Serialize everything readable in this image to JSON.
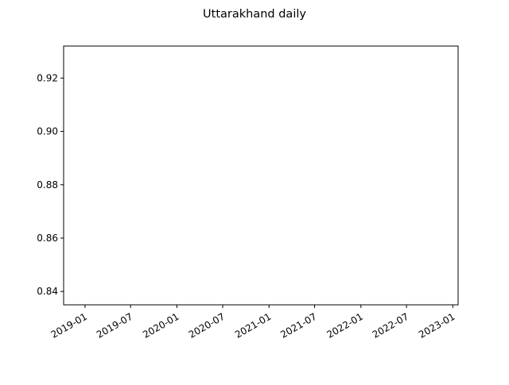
{
  "chart_data": {
    "type": "line",
    "title": "Uttarakhand daily",
    "xlabel": "",
    "ylabel": "",
    "x_axis_type": "date",
    "x_ticks": [
      "2019-01",
      "2019-07",
      "2020-01",
      "2020-07",
      "2021-01",
      "2021-07",
      "2022-01",
      "2022-07",
      "2023-01"
    ],
    "y_ticks": [
      "0.84",
      "0.86",
      "0.88",
      "0.90",
      "0.92"
    ],
    "xlim": [
      "2018-10-08",
      "2023-01-22"
    ],
    "ylim": [
      0.835,
      0.932
    ],
    "grid": false,
    "legend": "none",
    "series": []
  }
}
